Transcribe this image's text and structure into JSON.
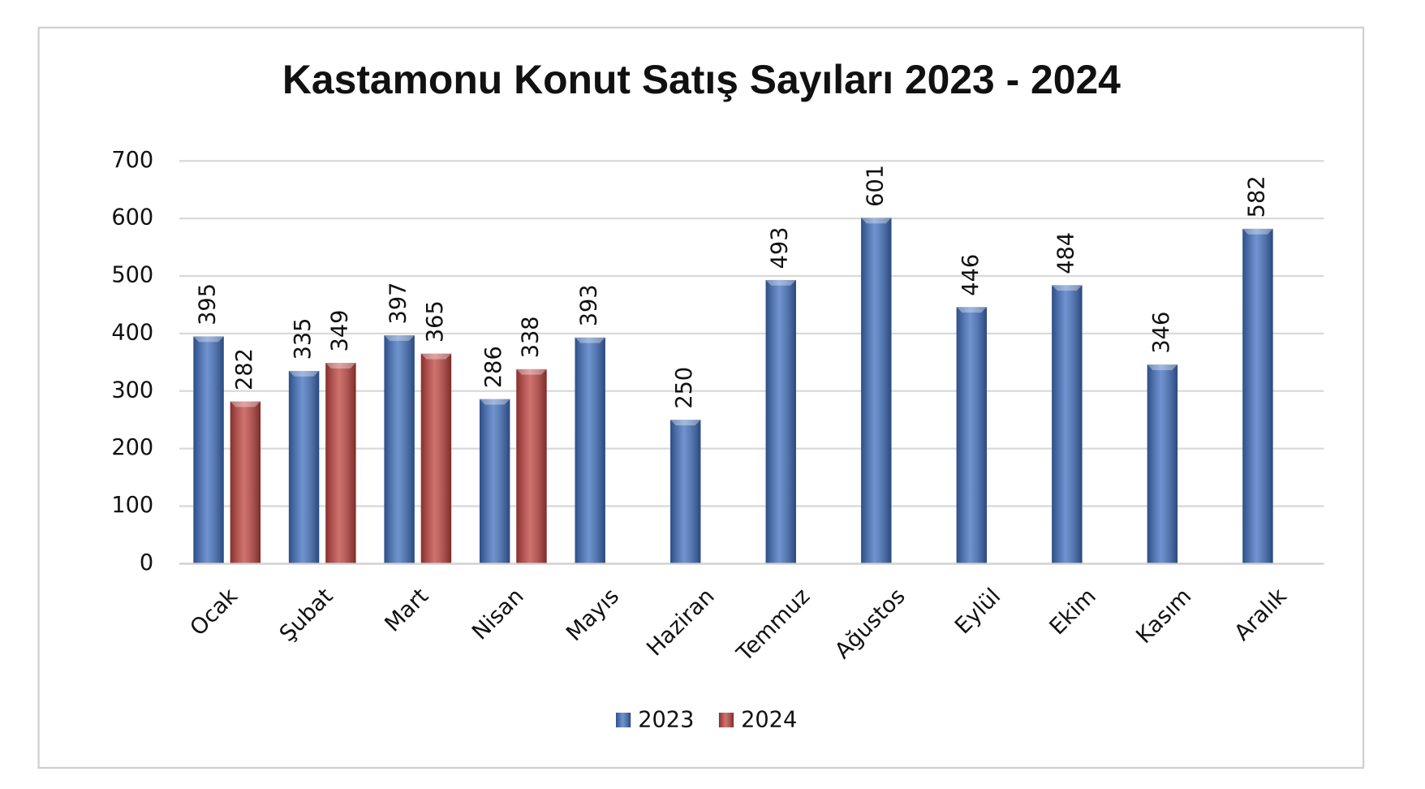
{
  "chart_data": {
    "type": "bar",
    "title": "Kastamonu Konut Satış Sayıları 2023 - 2024",
    "categories": [
      "Ocak",
      "Şubat",
      "Mart",
      "Nisan",
      "Mayıs",
      "Haziran",
      "Temmuz",
      "Ağustos",
      "Eylül",
      "Ekim",
      "Kasım",
      "Aralık"
    ],
    "series": [
      {
        "name": "2023",
        "color": "#3f6fbf",
        "values": [
          395,
          335,
          397,
          286,
          393,
          250,
          493,
          601,
          446,
          484,
          346,
          582
        ]
      },
      {
        "name": "2024",
        "color": "#c0433f",
        "values": [
          282,
          349,
          365,
          338,
          null,
          null,
          null,
          null,
          null,
          null,
          null,
          null
        ]
      }
    ],
    "ylim": [
      0,
      700
    ],
    "yticks": [
      0,
      100,
      200,
      300,
      400,
      500,
      600,
      700
    ],
    "grid": true,
    "legend": "bottom"
  }
}
